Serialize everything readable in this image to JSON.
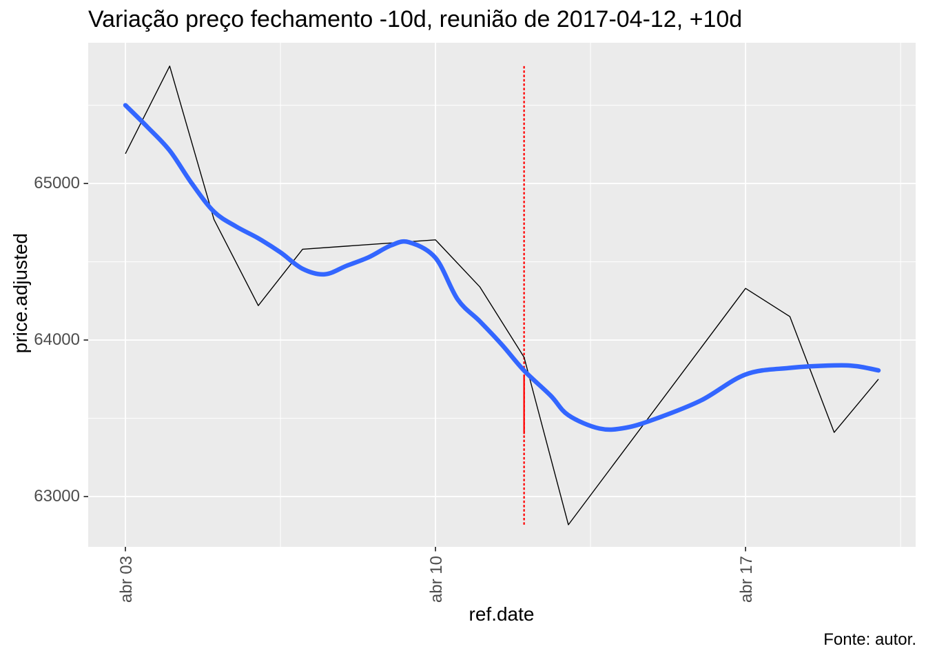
{
  "chart": {
    "title": "Variação preço fechamento -10d, reunião de 2017-04-12, +10d",
    "caption": "Fonte: autor.",
    "x_axis": {
      "title": "ref.date",
      "tick_labels": [
        "abr 03",
        "abr 10",
        "abr 17"
      ]
    },
    "y_axis": {
      "title": "price.adjusted",
      "tick_labels": [
        "63000",
        "64000",
        "65000"
      ]
    }
  },
  "chart_data": {
    "type": "line",
    "title": "Variação preço fechamento -10d, reunião de 2017-04-12, +10d",
    "xlabel": "ref.date",
    "ylabel": "price.adjusted",
    "x_unit": "day of April 2017",
    "x_tick_days": [
      3,
      10,
      17
    ],
    "x_minor_days": [
      6.5,
      13.5,
      20.5
    ],
    "y_tick_values": [
      63000,
      64000,
      65000
    ],
    "y_minor_values": [
      63500,
      64500,
      65500
    ],
    "xlim_days": [
      2.16,
      20.84
    ],
    "ylim": [
      62679,
      65899
    ],
    "grid": true,
    "legend": "none",
    "panel_background": "#EBEBEB",
    "grid_color": "#FFFFFF",
    "tick_color": "#333333",
    "tick_label_color": "#4D4D4D",
    "series": [
      {
        "name": "price.adjusted",
        "color": "#000000",
        "width": 1.4,
        "kind": "polyline",
        "points": [
          {
            "date": "2017-04-03",
            "day": 3,
            "value": 65190
          },
          {
            "date": "2017-04-04",
            "day": 4,
            "value": 65750
          },
          {
            "date": "2017-04-05",
            "day": 5,
            "value": 64770
          },
          {
            "date": "2017-04-06",
            "day": 6,
            "value": 64220
          },
          {
            "date": "2017-04-07",
            "day": 7,
            "value": 64580
          },
          {
            "date": "2017-04-10",
            "day": 10,
            "value": 64640
          },
          {
            "date": "2017-04-11",
            "day": 11,
            "value": 64340
          },
          {
            "date": "2017-04-12",
            "day": 12,
            "value": 63890
          },
          {
            "date": "2017-04-13",
            "day": 13,
            "value": 62820
          },
          {
            "date": "2017-04-17",
            "day": 17,
            "value": 64330
          },
          {
            "date": "2017-04-18",
            "day": 18,
            "value": 64150
          },
          {
            "date": "2017-04-19",
            "day": 19,
            "value": 63410
          },
          {
            "date": "2017-04-20",
            "day": 20,
            "value": 63750
          }
        ]
      },
      {
        "name": "loess smooth",
        "color": "#3366FF",
        "width": 6.5,
        "kind": "smooth",
        "points": [
          {
            "day": 3,
            "value": 65500
          },
          {
            "day": 3.5,
            "value": 65360
          },
          {
            "day": 4,
            "value": 65210
          },
          {
            "day": 4.5,
            "value": 65000
          },
          {
            "day": 5,
            "value": 64820
          },
          {
            "day": 5.5,
            "value": 64725
          },
          {
            "day": 6,
            "value": 64650
          },
          {
            "day": 6.5,
            "value": 64560
          },
          {
            "day": 7,
            "value": 64455
          },
          {
            "day": 7.5,
            "value": 64420
          },
          {
            "day": 8,
            "value": 64475
          },
          {
            "day": 8.5,
            "value": 64530
          },
          {
            "day": 9,
            "value": 64605
          },
          {
            "day": 9.4,
            "value": 64625
          },
          {
            "day": 10,
            "value": 64525
          },
          {
            "day": 10.5,
            "value": 64260
          },
          {
            "day": 11,
            "value": 64120
          },
          {
            "day": 11.5,
            "value": 63970
          },
          {
            "day": 12,
            "value": 63805
          },
          {
            "day": 12.6,
            "value": 63645
          },
          {
            "day": 13,
            "value": 63520
          },
          {
            "day": 13.7,
            "value": 63435
          },
          {
            "day": 14.3,
            "value": 63440
          },
          {
            "day": 15,
            "value": 63500
          },
          {
            "day": 16,
            "value": 63615
          },
          {
            "day": 17,
            "value": 63780
          },
          {
            "day": 18,
            "value": 63822
          },
          {
            "day": 19,
            "value": 63838
          },
          {
            "day": 19.5,
            "value": 63833
          },
          {
            "day": 20,
            "value": 63806
          }
        ]
      }
    ],
    "vline": {
      "date": "2017-04-12",
      "day": 12,
      "color": "#FF0000",
      "width": 2.3,
      "dotted_value_range": [
        62820,
        65750
      ],
      "solid_value_range": [
        63400,
        63777
      ]
    }
  }
}
